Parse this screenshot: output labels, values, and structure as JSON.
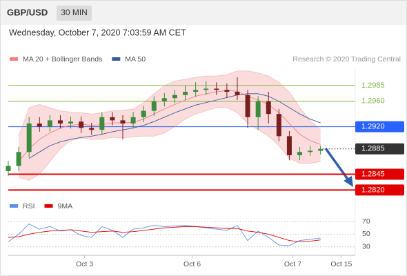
{
  "header": {
    "symbol": "GBP/USD",
    "interval": "30 MIN",
    "timestamp": "Wednesday, October 7, 2020 7:03:59 AM CET"
  },
  "chart_data": [
    {
      "type": "candlestick",
      "credit": "Research © 2020 Trading Central",
      "x": [
        0,
        3,
        6,
        9,
        12,
        15,
        18,
        21,
        24,
        27,
        30,
        33,
        36,
        39,
        42,
        45,
        48,
        51,
        54,
        57,
        60,
        63,
        66,
        69,
        72,
        75,
        78,
        81,
        84,
        87,
        90
      ],
      "open": [
        1.285,
        1.2858,
        1.288,
        1.2925,
        1.292,
        1.293,
        1.2925,
        1.2928,
        1.2918,
        1.2915,
        1.2935,
        1.293,
        1.2925,
        1.2935,
        1.2945,
        1.296,
        1.2965,
        1.297,
        1.2975,
        1.2978,
        1.298,
        1.2978,
        1.2975,
        1.297,
        1.2935,
        1.296,
        1.294,
        1.2905,
        1.2875,
        1.288,
        1.2882
      ],
      "high": [
        1.2866,
        1.2888,
        1.2935,
        1.2935,
        1.2938,
        1.2938,
        1.2936,
        1.2936,
        1.2926,
        1.2943,
        1.2943,
        1.2938,
        1.2943,
        1.2953,
        1.2968,
        1.2973,
        1.2978,
        1.2985,
        1.299,
        1.2992,
        1.299,
        1.2988,
        1.2998,
        1.2978,
        1.2968,
        1.2975,
        1.2948,
        1.2913,
        1.2888,
        1.289,
        1.289
      ],
      "low": [
        1.2842,
        1.285,
        1.2872,
        1.2912,
        1.2912,
        1.2917,
        1.2917,
        1.291,
        1.2907,
        1.2907,
        1.2922,
        1.29,
        1.2917,
        1.2927,
        1.2937,
        1.2952,
        1.2957,
        1.2962,
        1.2967,
        1.297,
        1.297,
        1.2965,
        1.2962,
        1.2918,
        1.2915,
        1.2925,
        1.2897,
        1.2867,
        1.2867,
        1.2874,
        1.2876
      ],
      "close": [
        1.2858,
        1.288,
        1.2925,
        1.292,
        1.293,
        1.2925,
        1.2928,
        1.2918,
        1.2915,
        1.2935,
        1.293,
        1.2925,
        1.2935,
        1.2945,
        1.296,
        1.2965,
        1.297,
        1.2975,
        1.2978,
        1.298,
        1.2978,
        1.2975,
        1.297,
        1.2935,
        1.296,
        1.294,
        1.2905,
        1.2875,
        1.288,
        1.2882,
        1.2885
      ],
      "up_color": "#3d8b3d",
      "down_color": "#7a1f1f",
      "series": [
        {
          "name": "MA 20 + Bollinger Bands",
          "color": "#f08080",
          "values": [
            null,
            1.2865,
            1.2885,
            1.29,
            1.291,
            1.2918,
            1.2922,
            1.2924,
            1.2922,
            1.2923,
            1.2926,
            1.2926,
            1.2927,
            1.2932,
            1.294,
            1.2948,
            1.2955,
            1.2962,
            1.2968,
            1.2972,
            1.2975,
            1.2977,
            1.2976,
            1.2968,
            1.2962,
            1.2955,
            1.2942,
            1.2925,
            1.2908,
            1.2898,
            1.2892
          ],
          "upper": [
            null,
            1.2905,
            1.295,
            1.2955,
            1.295,
            1.2945,
            1.2943,
            1.2942,
            1.294,
            1.2942,
            1.2945,
            1.2946,
            1.2948,
            1.2958,
            1.2972,
            1.2985,
            1.2992,
            1.2995,
            1.2998,
            1.3,
            1.3,
            1.3002,
            1.3008,
            1.3008,
            1.3005,
            1.3,
            1.299,
            1.2975,
            1.295,
            1.293,
            1.2915
          ],
          "lower": [
            null,
            1.284,
            1.2835,
            1.2845,
            1.2865,
            1.2885,
            1.2898,
            1.2902,
            1.29,
            1.29,
            1.2903,
            1.2902,
            1.2904,
            1.2905,
            1.2905,
            1.291,
            1.292,
            1.2932,
            1.294,
            1.2945,
            1.295,
            1.295,
            1.2942,
            1.2925,
            1.2915,
            1.2905,
            1.289,
            1.287,
            1.2862,
            1.2862,
            1.2865
          ]
        },
        {
          "name": "MA 50",
          "color": "#3a5a9a",
          "values": [
            null,
            null,
            1.287,
            1.288,
            1.289,
            1.2896,
            1.29,
            1.2903,
            1.2905,
            1.2908,
            1.2912,
            1.2915,
            1.2918,
            1.2922,
            1.2928,
            1.2935,
            1.2942,
            1.2948,
            1.2954,
            1.2958,
            1.2962,
            1.2966,
            1.297,
            1.2972,
            1.2972,
            1.2968,
            1.296,
            1.295,
            1.294,
            1.2932,
            1.2926
          ]
        }
      ],
      "levels": [
        {
          "value": 1.2985,
          "color": "#7cb342",
          "style": "text"
        },
        {
          "value": 1.296,
          "label": "1.2960",
          "color": "#7cb342",
          "style": "text"
        },
        {
          "value": 1.292,
          "label": "1.2920",
          "color": "#2962ff",
          "style": "box"
        },
        {
          "value": 1.2885,
          "color": "#333333",
          "style": "current"
        },
        {
          "value": 1.2845,
          "color": "#e00000",
          "style": "box"
        },
        {
          "value": 1.282,
          "label": "1.2820",
          "color": "#e00000",
          "style": "box"
        }
      ],
      "xlim": [
        0,
        100
      ],
      "ylim": [
        1.2815,
        1.3011
      ]
    },
    {
      "type": "line",
      "x": [
        0,
        3,
        6,
        9,
        12,
        15,
        18,
        21,
        24,
        27,
        30,
        33,
        36,
        39,
        42,
        45,
        48,
        51,
        54,
        57,
        60,
        63,
        66,
        69,
        72,
        75,
        78,
        81,
        84,
        87,
        90
      ],
      "series": [
        {
          "name": "RSI",
          "color": "#5b8ee6",
          "values": [
            38,
            50,
            66,
            58,
            62,
            55,
            57,
            48,
            45,
            62,
            56,
            45,
            58,
            60,
            64,
            62,
            63,
            64,
            62,
            60,
            58,
            56,
            64,
            40,
            55,
            45,
            33,
            32,
            40,
            42,
            44
          ]
        },
        {
          "name": "9MA",
          "color": "#e00000",
          "values": [
            45,
            46,
            50,
            53,
            55,
            56,
            57,
            55,
            53,
            54,
            55,
            53,
            54,
            56,
            58,
            60,
            61,
            62,
            62,
            61,
            60,
            59,
            59,
            55,
            53,
            50,
            45,
            40,
            38,
            39,
            41
          ]
        }
      ],
      "xlim": [
        0,
        100
      ],
      "ylim": [
        20,
        76
      ],
      "yticks": [
        30,
        50,
        70
      ],
      "xticks": [
        {
          "value": 22,
          "label": "Oct 3"
        },
        {
          "value": 53,
          "label": "Oct 6"
        },
        {
          "value": 82,
          "label": "Oct 7"
        },
        {
          "value": 96,
          "label": "Oct 15"
        }
      ]
    }
  ]
}
